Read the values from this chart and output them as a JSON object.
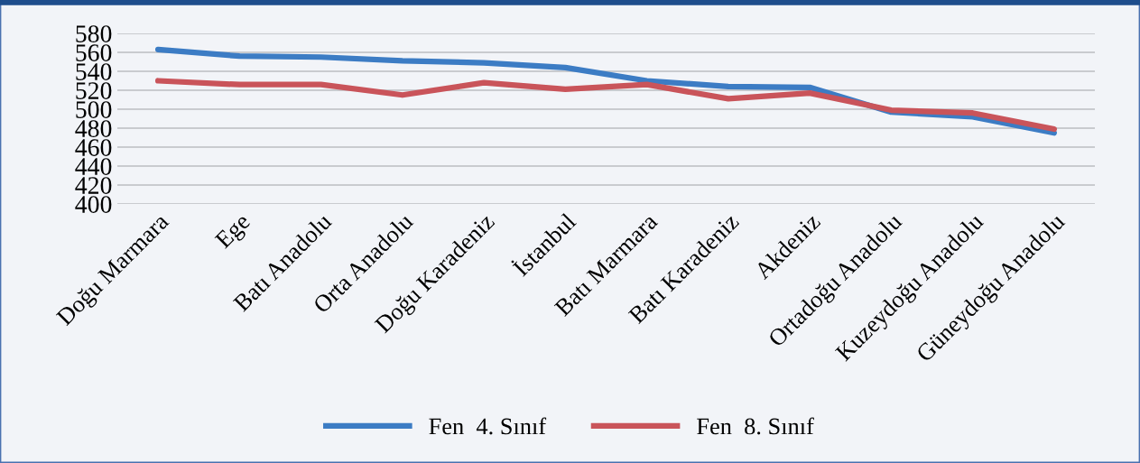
{
  "chart_data": {
    "type": "line",
    "categories": [
      "Doğu Marmara",
      "Ege",
      "Batı Anadolu",
      "Orta Anadolu",
      "Doğu Karadeniz",
      "İstanbul",
      "Batı Marmara",
      "Batı Karadeniz",
      "Akdeniz",
      "Ortadoğu Anadolu",
      "Kuzeydoğu Anadolu",
      "Güneydoğu Anadolu"
    ],
    "series": [
      {
        "name": "Fen  4. Sınıf",
        "color": "#3c7cc4",
        "values": [
          563,
          556,
          555,
          551,
          549,
          544,
          530,
          524,
          523,
          497,
          492,
          475
        ]
      },
      {
        "name": "Fen  8. Sınıf",
        "color": "#c9545a",
        "values": [
          530,
          526,
          526,
          515,
          528,
          521,
          526,
          511,
          517,
          499,
          496,
          479
        ]
      }
    ],
    "ylim": [
      400,
      580
    ],
    "yticks": [
      400,
      420,
      440,
      460,
      480,
      500,
      520,
      540,
      560,
      580
    ],
    "grid": "y",
    "legend": "bottom",
    "marker": "none",
    "line_style": "solid"
  }
}
